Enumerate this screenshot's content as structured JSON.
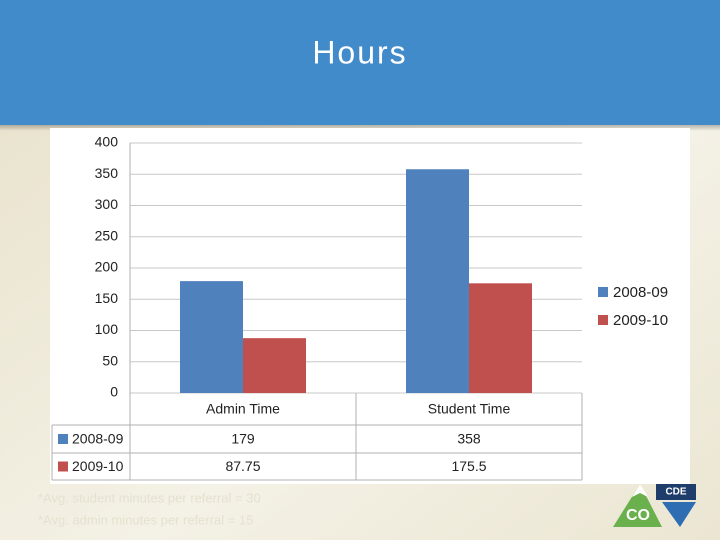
{
  "header": {
    "title": "Hours"
  },
  "chart_data": {
    "type": "bar",
    "categories": [
      "Admin Time",
      "Student Time"
    ],
    "series": [
      {
        "name": "2008-09",
        "color": "#4f81bd",
        "values": [
          179,
          358
        ]
      },
      {
        "name": "2009-10",
        "color": "#c0504d",
        "values": [
          87.75,
          175.5
        ]
      }
    ],
    "ylim": [
      0,
      400
    ],
    "yticks": [
      0,
      50,
      100,
      150,
      200,
      250,
      300,
      350,
      400
    ],
    "grid": true,
    "legend": "right",
    "data_table": true
  },
  "footnotes": [
    "*Avg. student minutes per referral = 30",
    "*Avg. admin minutes per referral = 15"
  ],
  "logo": {
    "top": "CDE",
    "main": "CO"
  }
}
